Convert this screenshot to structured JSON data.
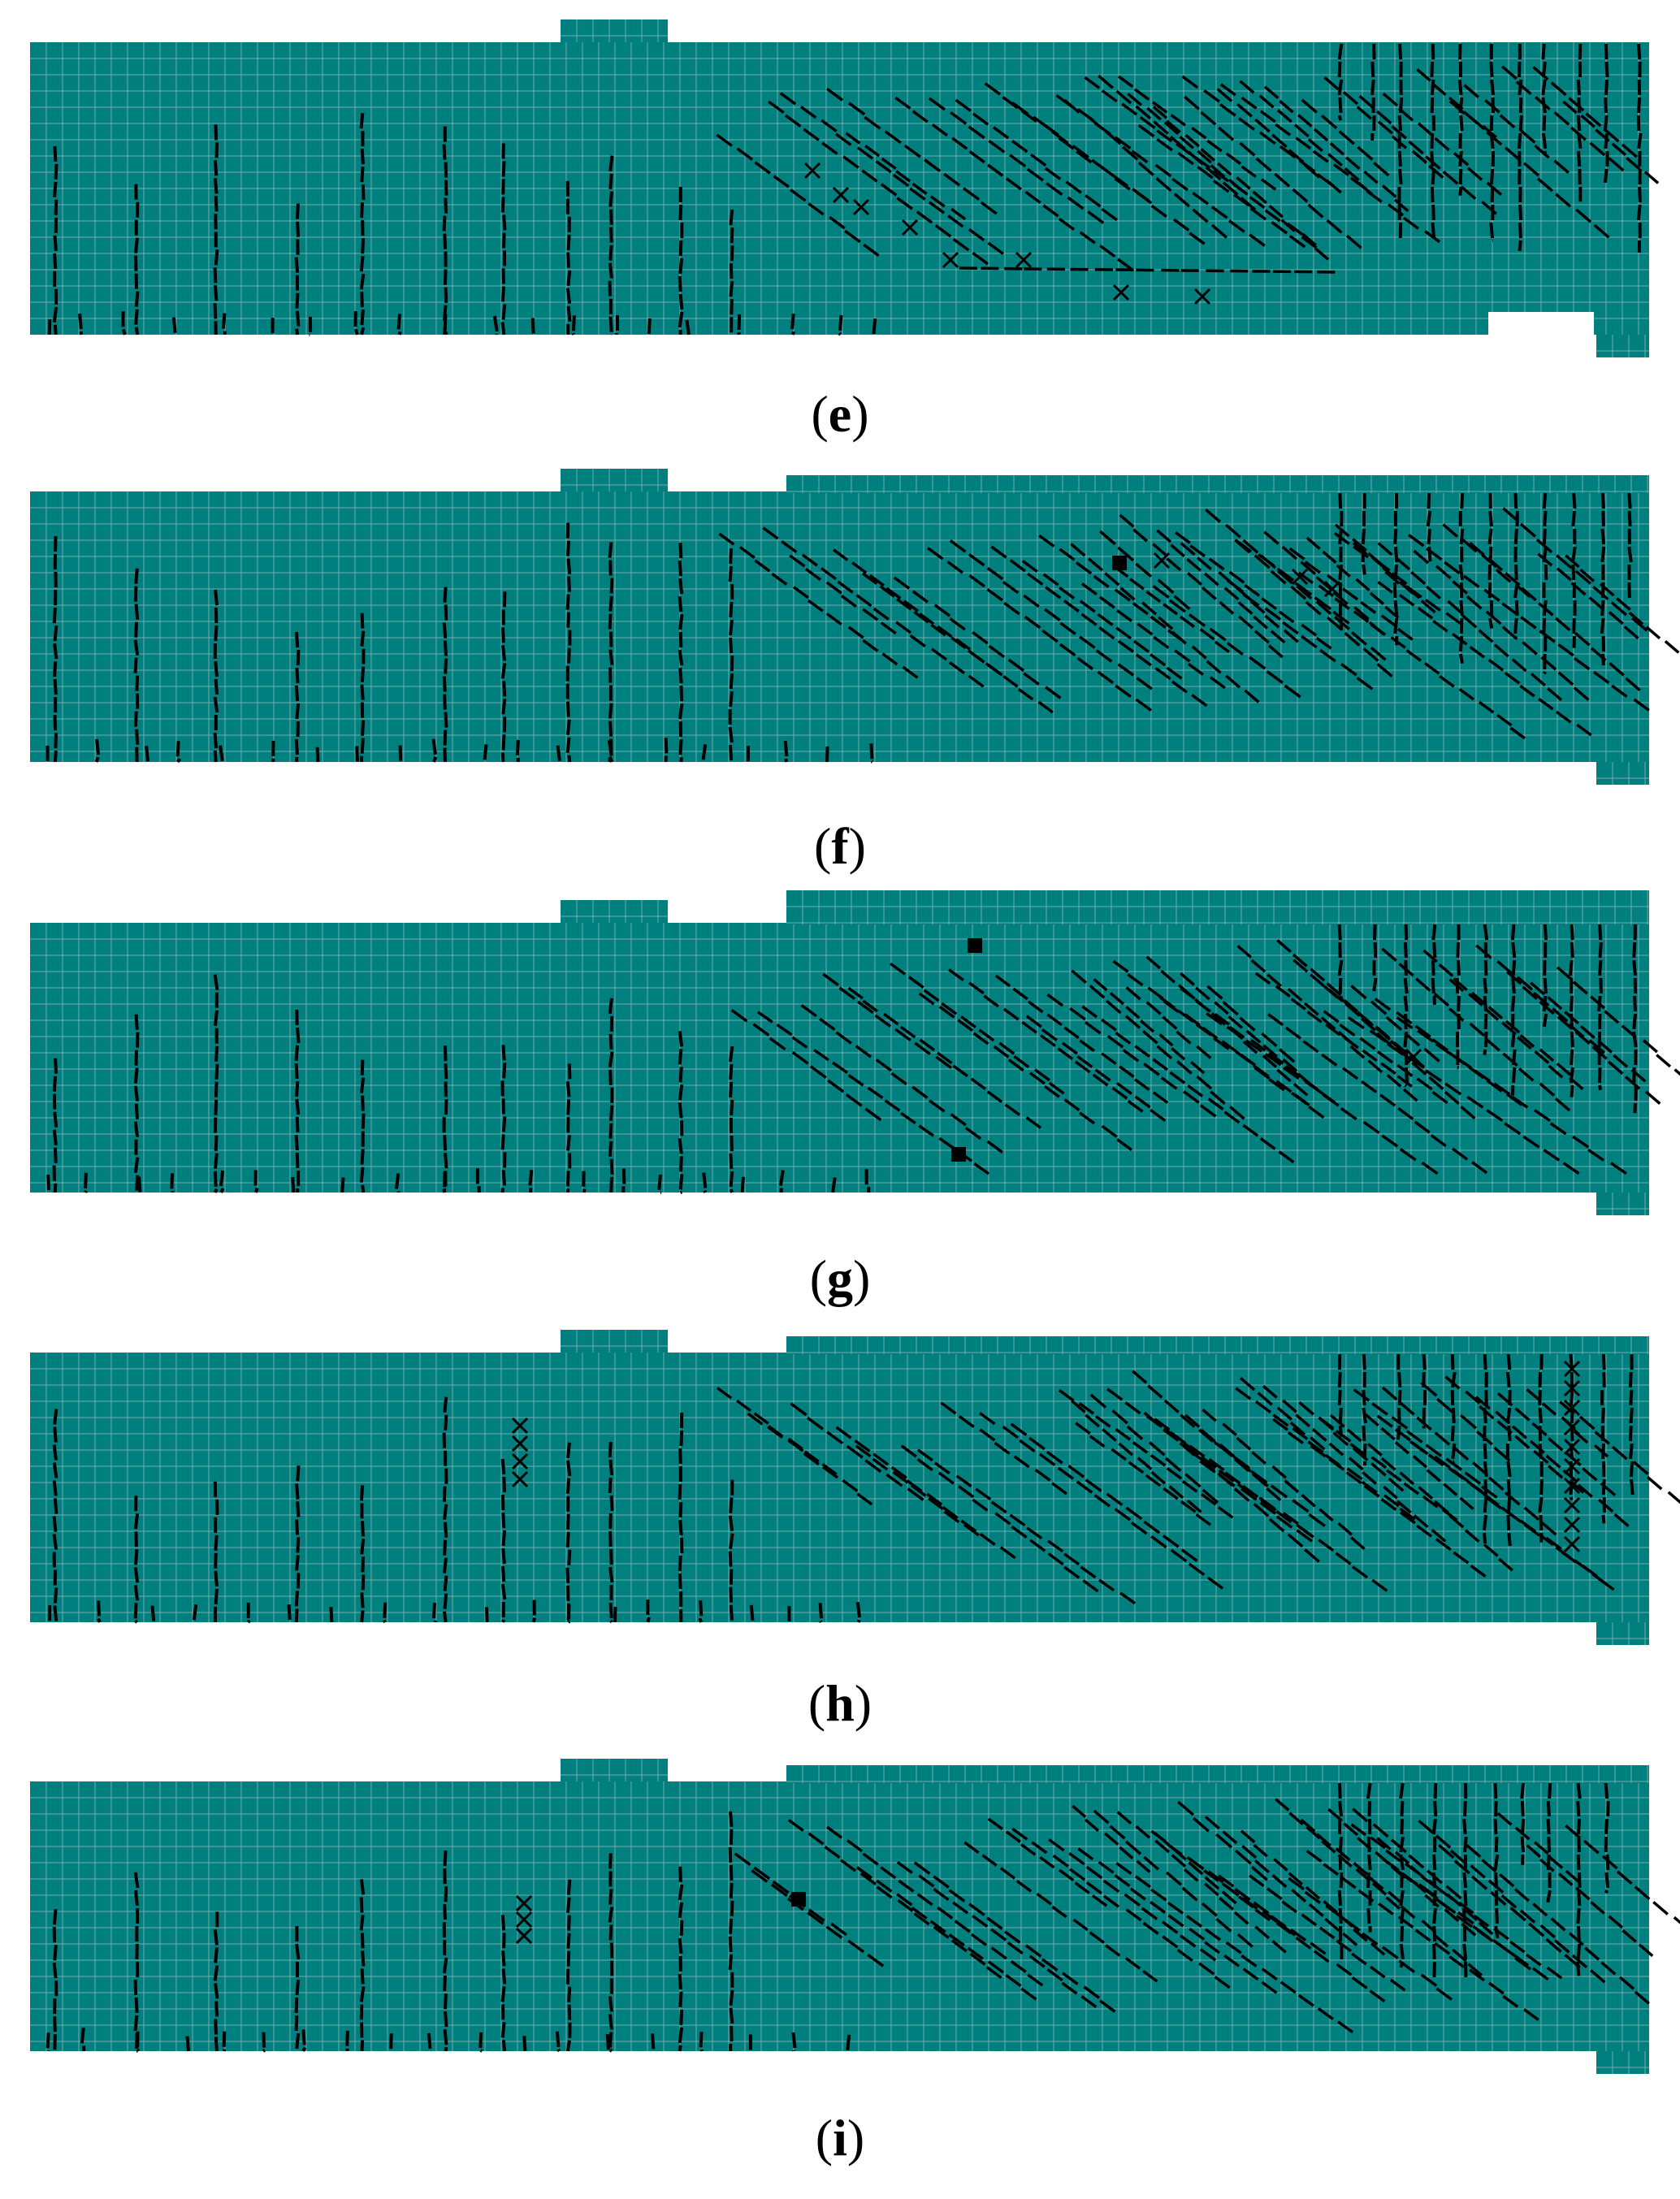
{
  "figure": {
    "panels": [
      {
        "id": "e",
        "label": "e",
        "variant": "e"
      },
      {
        "id": "f",
        "label": "f",
        "variant": "f"
      },
      {
        "id": "g",
        "label": "g",
        "variant": "g"
      },
      {
        "id": "h",
        "label": "h",
        "variant": "h"
      },
      {
        "id": "i",
        "label": "i",
        "variant": "i"
      }
    ],
    "colors": {
      "beam_fill": "#007f7f",
      "mesh_line": "#8fb8b8",
      "crack": "#000000",
      "caption": "#000000"
    }
  }
}
